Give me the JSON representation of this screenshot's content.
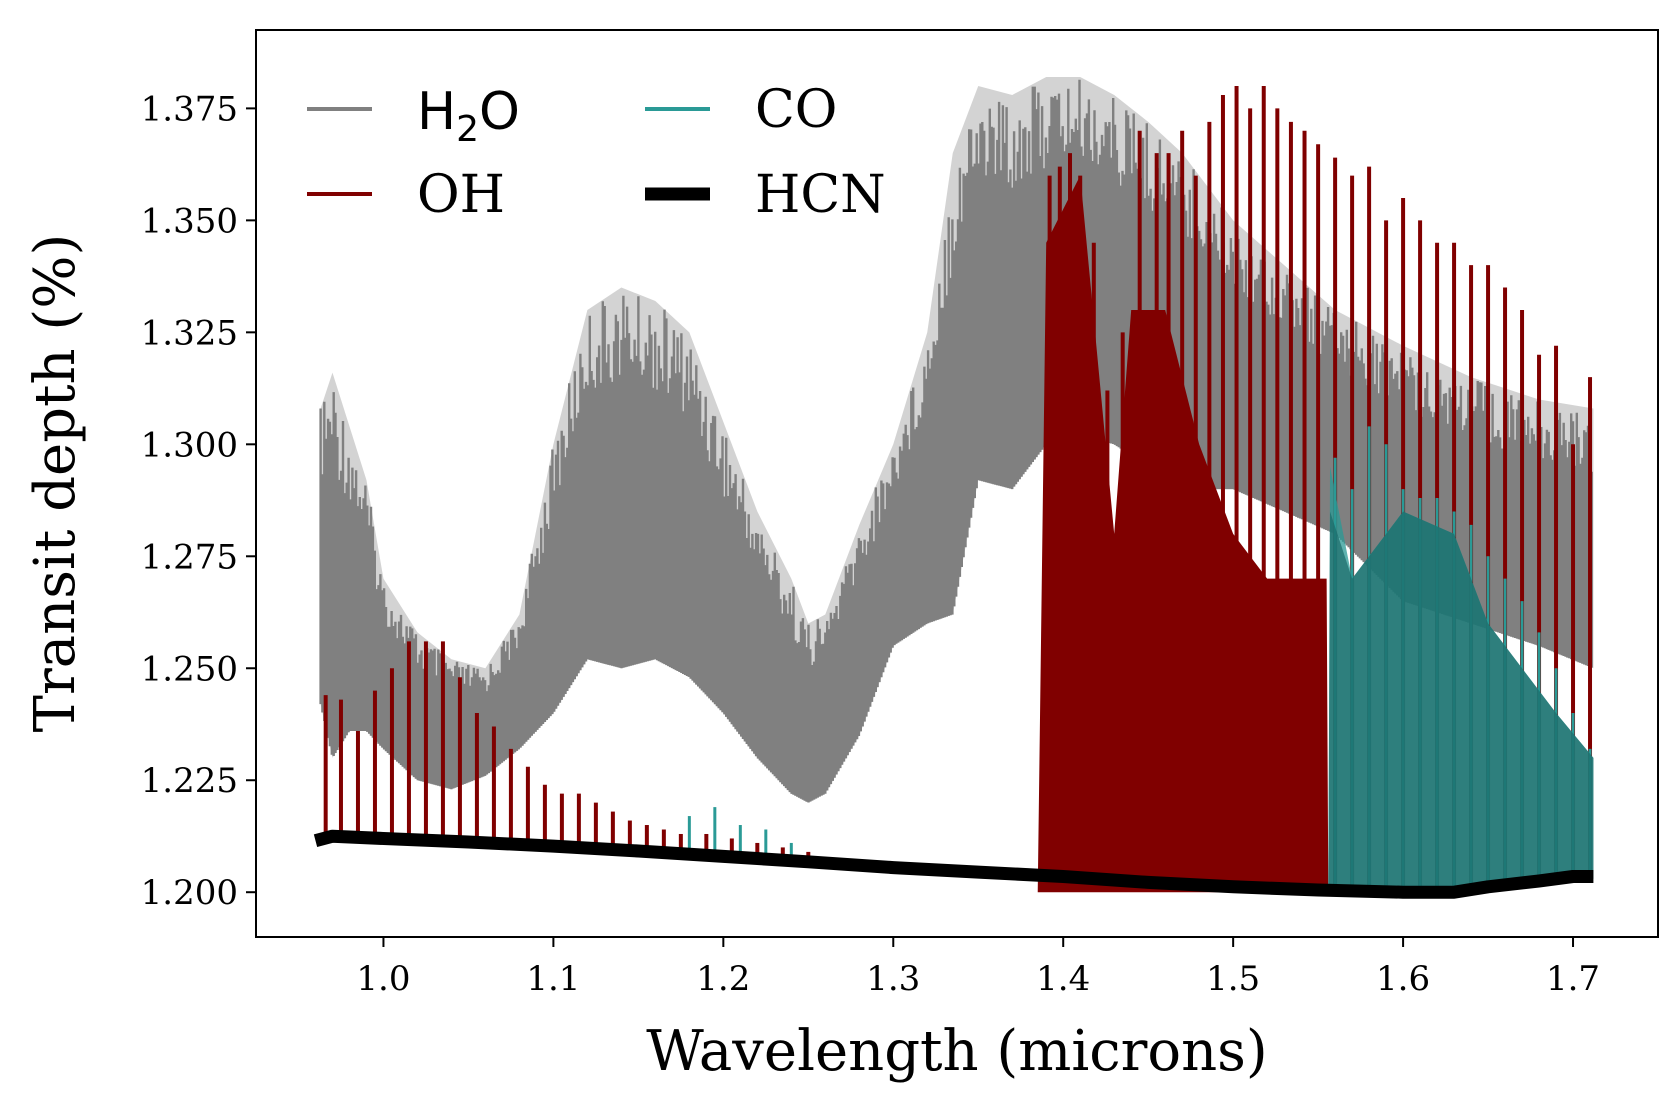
{
  "chart_data": {
    "type": "line",
    "title": "",
    "xlabel": "Wavelength (microns)",
    "ylabel": "Transit depth (%)",
    "xlim": [
      0.925,
      1.75
    ],
    "ylim": [
      1.19,
      1.3925
    ],
    "xticks": [
      1.0,
      1.1,
      1.2,
      1.3,
      1.4,
      1.5,
      1.6,
      1.7
    ],
    "xtick_labels": [
      "1.0",
      "1.1",
      "1.2",
      "1.3",
      "1.4",
      "1.5",
      "1.6",
      "1.7"
    ],
    "yticks": [
      1.2,
      1.225,
      1.25,
      1.275,
      1.3,
      1.325,
      1.35,
      1.375
    ],
    "ytick_labels": [
      "1.200",
      "1.225",
      "1.250",
      "1.275",
      "1.300",
      "1.325",
      "1.350",
      "1.375"
    ],
    "grid": false,
    "legend_position": "top-left",
    "legend_columns": 2,
    "series": [
      {
        "name": "H₂O",
        "label_base": "H",
        "label_sub": "2",
        "label_tail": "O",
        "color": "#808080",
        "style": "dense-lines",
        "wavelength": [
          0.963,
          0.97,
          0.98,
          0.99,
          1.0,
          1.02,
          1.04,
          1.06,
          1.08,
          1.1,
          1.12,
          1.14,
          1.16,
          1.18,
          1.2,
          1.22,
          1.24,
          1.25,
          1.26,
          1.28,
          1.3,
          1.32,
          1.335,
          1.35,
          1.37,
          1.39,
          1.41,
          1.43,
          1.45,
          1.47,
          1.5,
          1.53,
          1.56,
          1.6,
          1.64,
          1.68,
          1.712
        ],
        "upper": [
          1.308,
          1.316,
          1.304,
          1.292,
          1.27,
          1.258,
          1.252,
          1.25,
          1.262,
          1.3,
          1.33,
          1.335,
          1.332,
          1.325,
          1.305,
          1.285,
          1.27,
          1.26,
          1.262,
          1.282,
          1.3,
          1.325,
          1.365,
          1.38,
          1.378,
          1.382,
          1.382,
          1.378,
          1.372,
          1.365,
          1.35,
          1.34,
          1.33,
          1.322,
          1.315,
          1.31,
          1.308
        ],
        "lower": [
          1.242,
          1.23,
          1.236,
          1.236,
          1.232,
          1.225,
          1.223,
          1.226,
          1.232,
          1.24,
          1.252,
          1.25,
          1.252,
          1.248,
          1.24,
          1.23,
          1.222,
          1.22,
          1.222,
          1.235,
          1.255,
          1.26,
          1.262,
          1.292,
          1.29,
          1.3,
          1.302,
          1.3,
          1.295,
          1.29,
          1.29,
          1.285,
          1.28,
          1.265,
          1.26,
          1.255,
          1.25
        ]
      },
      {
        "name": "OH",
        "color": "#800000",
        "style": "spikes",
        "lines": [
          [
            0.966,
            1.244
          ],
          [
            0.975,
            1.243
          ],
          [
            0.985,
            1.236
          ],
          [
            0.995,
            1.245
          ],
          [
            1.005,
            1.25
          ],
          [
            1.015,
            1.256
          ],
          [
            1.025,
            1.256
          ],
          [
            1.035,
            1.256
          ],
          [
            1.045,
            1.248
          ],
          [
            1.055,
            1.24
          ],
          [
            1.065,
            1.237
          ],
          [
            1.075,
            1.232
          ],
          [
            1.085,
            1.228
          ],
          [
            1.095,
            1.224
          ],
          [
            1.105,
            1.222
          ],
          [
            1.115,
            1.222
          ],
          [
            1.125,
            1.22
          ],
          [
            1.135,
            1.218
          ],
          [
            1.145,
            1.216
          ],
          [
            1.155,
            1.215
          ],
          [
            1.165,
            1.214
          ],
          [
            1.175,
            1.213
          ],
          [
            1.19,
            1.213
          ],
          [
            1.205,
            1.212
          ],
          [
            1.22,
            1.211
          ],
          [
            1.235,
            1.21
          ],
          [
            1.25,
            1.209
          ],
          [
            1.392,
            1.36
          ],
          [
            1.398,
            1.362
          ],
          [
            1.404,
            1.365
          ],
          [
            1.41,
            1.36
          ],
          [
            1.418,
            1.345
          ],
          [
            1.426,
            1.312
          ],
          [
            1.435,
            1.325
          ],
          [
            1.445,
            1.37
          ],
          [
            1.455,
            1.365
          ],
          [
            1.462,
            1.365
          ],
          [
            1.47,
            1.37
          ],
          [
            1.478,
            1.36
          ],
          [
            1.486,
            1.372
          ],
          [
            1.494,
            1.378
          ],
          [
            1.502,
            1.38
          ],
          [
            1.51,
            1.375
          ],
          [
            1.518,
            1.38
          ],
          [
            1.526,
            1.375
          ],
          [
            1.534,
            1.372
          ],
          [
            1.542,
            1.37
          ],
          [
            1.55,
            1.367
          ],
          [
            1.56,
            1.364
          ],
          [
            1.57,
            1.36
          ],
          [
            1.58,
            1.362
          ],
          [
            1.59,
            1.35
          ],
          [
            1.6,
            1.355
          ],
          [
            1.61,
            1.35
          ],
          [
            1.62,
            1.345
          ],
          [
            1.63,
            1.345
          ],
          [
            1.64,
            1.34
          ],
          [
            1.65,
            1.34
          ],
          [
            1.66,
            1.335
          ],
          [
            1.67,
            1.33
          ],
          [
            1.68,
            1.32
          ],
          [
            1.69,
            1.322
          ],
          [
            1.7,
            1.3
          ],
          [
            1.71,
            1.315
          ]
        ],
        "envelope": [
          [
            1.385,
            1.2
          ],
          [
            1.39,
            1.345
          ],
          [
            1.41,
            1.36
          ],
          [
            1.42,
            1.32
          ],
          [
            1.43,
            1.28
          ],
          [
            1.44,
            1.33
          ],
          [
            1.46,
            1.33
          ],
          [
            1.48,
            1.3
          ],
          [
            1.5,
            1.28
          ],
          [
            1.52,
            1.27
          ],
          [
            1.555,
            1.27
          ],
          [
            1.556,
            1.2
          ]
        ]
      },
      {
        "name": "CO",
        "color": "#2a9a96",
        "style": "spikes",
        "lines": [
          [
            1.18,
            1.217
          ],
          [
            1.195,
            1.219
          ],
          [
            1.21,
            1.215
          ],
          [
            1.225,
            1.214
          ],
          [
            1.24,
            1.211
          ],
          [
            1.56,
            1.297
          ],
          [
            1.57,
            1.29
          ],
          [
            1.58,
            1.304
          ],
          [
            1.59,
            1.3
          ],
          [
            1.6,
            1.29
          ],
          [
            1.61,
            1.288
          ],
          [
            1.62,
            1.288
          ],
          [
            1.63,
            1.285
          ],
          [
            1.64,
            1.282
          ],
          [
            1.65,
            1.275
          ],
          [
            1.66,
            1.27
          ],
          [
            1.67,
            1.265
          ],
          [
            1.68,
            1.258
          ],
          [
            1.69,
            1.25
          ],
          [
            1.7,
            1.24
          ],
          [
            1.71,
            1.232
          ]
        ],
        "envelope": [
          [
            1.556,
            1.2
          ],
          [
            1.557,
            1.295
          ],
          [
            1.57,
            1.27
          ],
          [
            1.6,
            1.285
          ],
          [
            1.63,
            1.28
          ],
          [
            1.65,
            1.26
          ],
          [
            1.67,
            1.25
          ],
          [
            1.69,
            1.24
          ],
          [
            1.712,
            1.23
          ],
          [
            1.712,
            1.203
          ]
        ]
      },
      {
        "name": "HCN",
        "color": "#000000",
        "style": "thick-line",
        "x": [
          0.96,
          0.97,
          1.0,
          1.05,
          1.1,
          1.15,
          1.2,
          1.25,
          1.3,
          1.35,
          1.4,
          1.45,
          1.5,
          1.55,
          1.6,
          1.63,
          1.65,
          1.68,
          1.7,
          1.712
        ],
        "y": [
          1.2115,
          1.2125,
          1.212,
          1.2112,
          1.2103,
          1.2092,
          1.208,
          1.2068,
          1.2055,
          1.2045,
          1.2035,
          1.2022,
          1.2012,
          1.2005,
          1.2,
          1.2,
          1.2012,
          1.2025,
          1.2035,
          1.2035
        ]
      }
    ]
  }
}
